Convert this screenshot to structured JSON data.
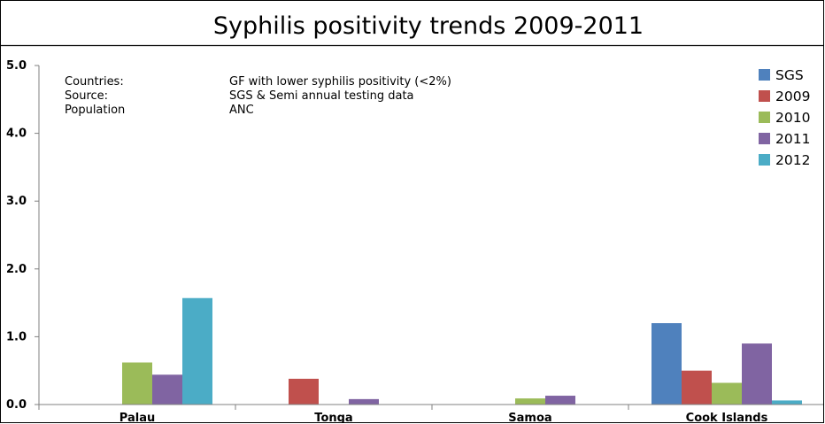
{
  "chart_data": {
    "type": "bar",
    "title": "Syphilis positivity trends 2009-2011",
    "categories": [
      "Palau",
      "Tonga",
      "Samoa",
      "Cook Islands"
    ],
    "series": [
      {
        "name": "SGS",
        "color": "#4F81BD",
        "values": [
          0,
          0,
          0,
          1.2
        ]
      },
      {
        "name": "2009",
        "color": "#C0504D",
        "values": [
          0,
          0.38,
          0,
          0.5
        ]
      },
      {
        "name": "2010",
        "color": "#9BBB59",
        "values": [
          0.62,
          0,
          0.09,
          0.32
        ]
      },
      {
        "name": "2011",
        "color": "#8064A2",
        "values": [
          0.44,
          0.08,
          0.13,
          0.9
        ]
      },
      {
        "name": "2012",
        "color": "#4BACC6",
        "values": [
          1.57,
          0,
          0,
          0.06
        ]
      }
    ],
    "ylim": [
      0,
      5
    ],
    "yticks": [
      "0.0",
      "1.0",
      "2.0",
      "3.0",
      "4.0",
      "5.0"
    ],
    "xlabel": "",
    "ylabel": "",
    "legend": "top-right",
    "grid": false,
    "annotations": [
      {
        "label": "Countries:",
        "value": "GF with lower syphilis positivity (<2%)"
      },
      {
        "label": "Source:",
        "value": "SGS & Semi annual testing data"
      },
      {
        "label": "Population",
        "value": "ANC"
      }
    ]
  }
}
